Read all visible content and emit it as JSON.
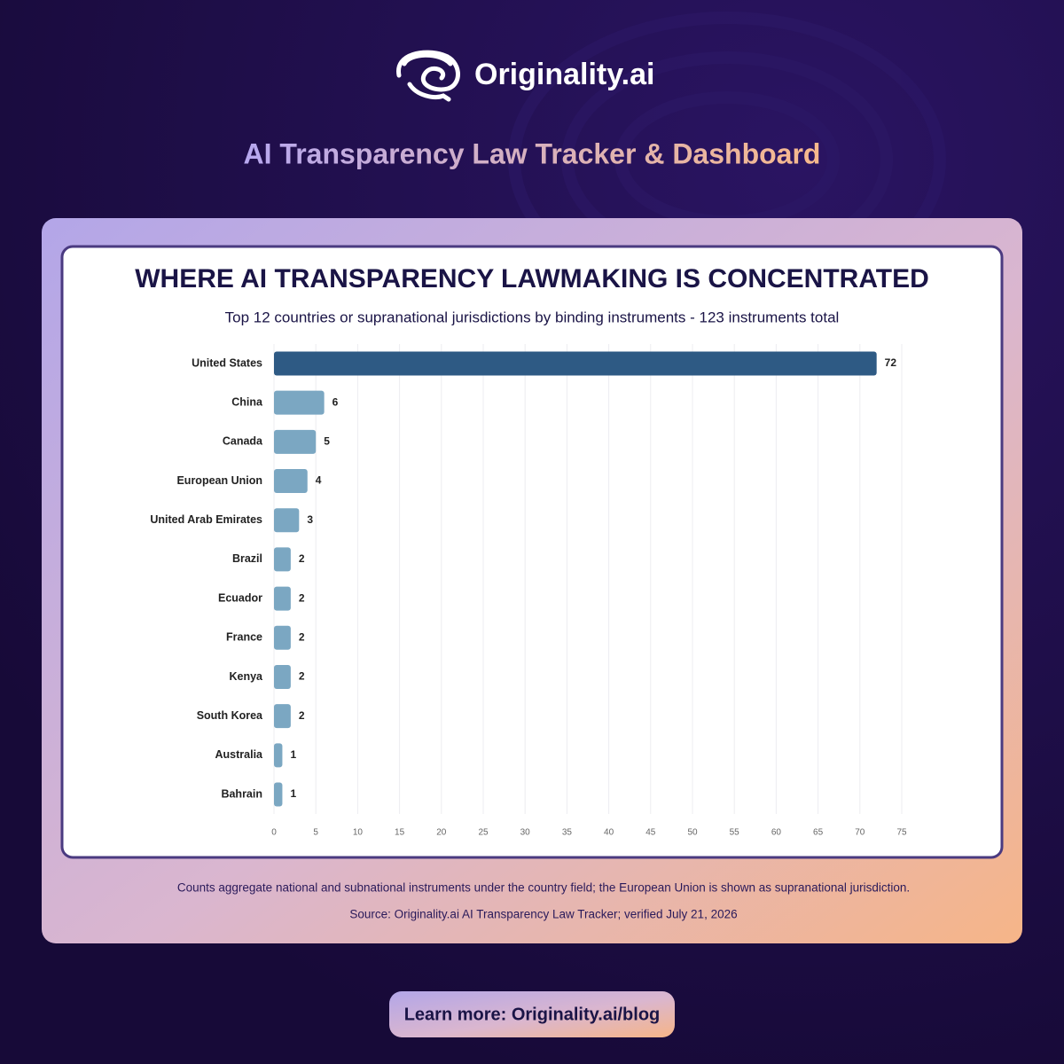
{
  "brand": "Originality.ai",
  "header": {
    "title": "AI Transparency Law Tracker & Dashboard"
  },
  "chart_data": {
    "type": "hbar",
    "title": "WHERE AI TRANSPARENCY LAWMAKING IS CONCENTRATED",
    "subtitle": "Top 12 countries or supranational jurisdictions by binding instruments - 123 instruments total",
    "categories": [
      "United States",
      "China",
      "Canada",
      "European Union",
      "United Arab Emirates",
      "Brazil",
      "Ecuador",
      "France",
      "Kenya",
      "South Korea",
      "Australia",
      "Bahrain"
    ],
    "values": [
      72,
      6,
      5,
      4,
      3,
      2,
      2,
      2,
      2,
      2,
      1,
      1
    ],
    "colors": [
      "#2e5a84",
      "#7ba7c2",
      "#7ba7c2",
      "#7ba7c2",
      "#7ba7c2",
      "#7ba7c2",
      "#7ba7c2",
      "#7ba7c2",
      "#7ba7c2",
      "#7ba7c2",
      "#7ba7c2",
      "#7ba7c2"
    ],
    "xlim": [
      0,
      75
    ],
    "xticks": [
      0,
      5,
      10,
      15,
      20,
      25,
      30,
      35,
      40,
      45,
      50,
      55,
      60,
      65,
      70,
      75
    ],
    "grid": true
  },
  "footnote": "Counts aggregate national and subnational instruments under the country field; the European Union is shown as supranational jurisdiction.",
  "source": "Source: Originality.ai AI Transparency Law Tracker; verified July 21, 2026",
  "cta": "Learn more: Originality.ai/blog"
}
